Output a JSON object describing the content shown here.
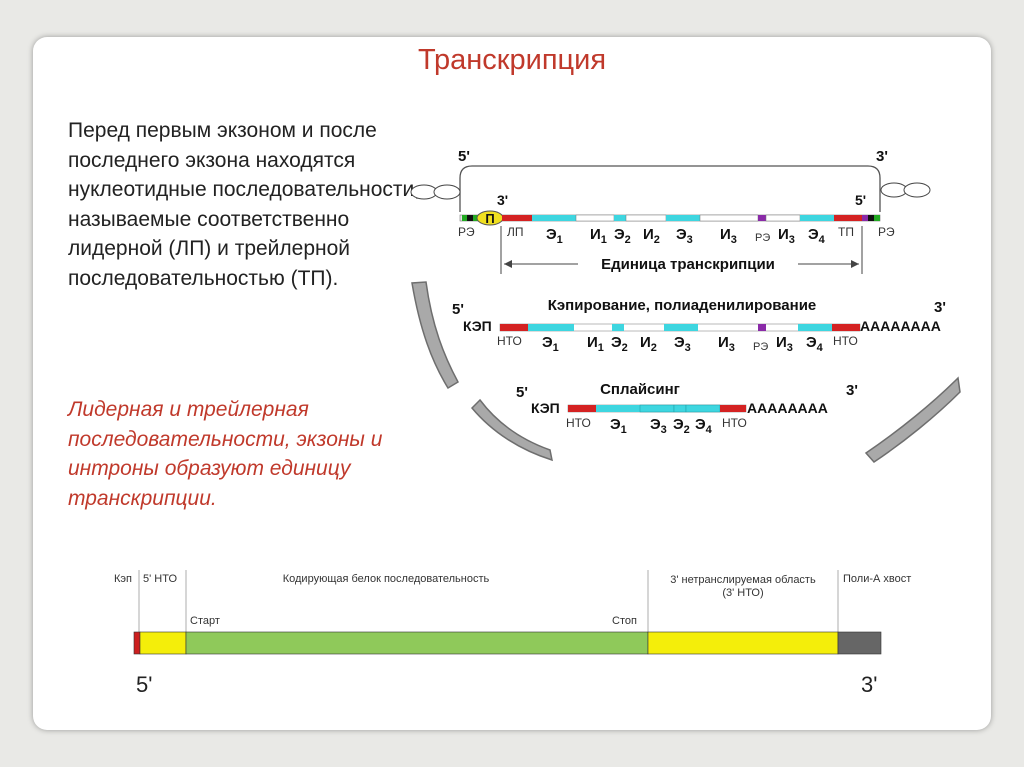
{
  "slide": {
    "title": "Транскрипция",
    "main_text": "Перед первым экзоном и после последнего экзона находятся нуклеотидные последовательности, называемые соответственно лидерной (ЛП) и трейлерной последовательностью (ТП).",
    "note_text": "Лидерная и трейлерная последовательности, экзоны и интроны образуют единицу транскрипции."
  },
  "diagram_top": {
    "five_prime": "5'",
    "three_prime": "3'",
    "inner_three_prime": "3'",
    "inner_five_prime": "5'",
    "promoter": "П",
    "re_left": "РЭ",
    "lp": "ЛП",
    "re_mid": "РЭ",
    "tp": "ТП",
    "re_right": "РЭ",
    "unit_label": "Единица транскрипции",
    "segments": [
      {
        "main": "Э",
        "sub": "1"
      },
      {
        "main": "И",
        "sub": "1"
      },
      {
        "main": "Э",
        "sub": "2"
      },
      {
        "main": "И",
        "sub": "2"
      },
      {
        "main": "Э",
        "sub": "3"
      },
      {
        "main": "И",
        "sub": "3"
      },
      {
        "main": "И",
        "sub": "3"
      },
      {
        "main": "Э",
        "sub": "4"
      }
    ]
  },
  "diagram_mid": {
    "five_prime": "5'",
    "three_prime": "3'",
    "process": "Кэпирование, полиаденилирование",
    "cap": "КЭП",
    "polya": "АААААААА",
    "nto_left": "НТО",
    "nto_right": "НТО",
    "re": "РЭ",
    "segments": [
      {
        "main": "Э",
        "sub": "1"
      },
      {
        "main": "И",
        "sub": "1"
      },
      {
        "main": "Э",
        "sub": "2"
      },
      {
        "main": "И",
        "sub": "2"
      },
      {
        "main": "Э",
        "sub": "3"
      },
      {
        "main": "И",
        "sub": "3"
      },
      {
        "main": "И",
        "sub": "3"
      },
      {
        "main": "Э",
        "sub": "4"
      }
    ]
  },
  "diagram_low": {
    "five_prime": "5'",
    "three_prime": "3'",
    "process": "Сплайсинг",
    "cap": "КЭП",
    "polya": "АААААААА",
    "nto_left": "НТО",
    "nto_right": "НТО",
    "segments": [
      {
        "main": "Э",
        "sub": "1"
      },
      {
        "main": "Э",
        "sub": "3"
      },
      {
        "main": "Э",
        "sub": "2"
      },
      {
        "main": "Э",
        "sub": "4"
      }
    ]
  },
  "mrna_bar": {
    "cap": "Кэп",
    "utr5": "5' НТО",
    "coding": "Кодирующая белок последовательность",
    "utr3_line1": "3' нетранслируемая область",
    "utr3_line2": "(3' НТО)",
    "polya": "Поли-А хвост",
    "start": "Старт",
    "stop": "Стоп",
    "five_prime": "5'",
    "three_prime": "3'",
    "colors": {
      "cap": "#cc1f1f",
      "utr": "#f4ee0a",
      "coding": "#8fc95a",
      "polya": "#666666"
    }
  }
}
